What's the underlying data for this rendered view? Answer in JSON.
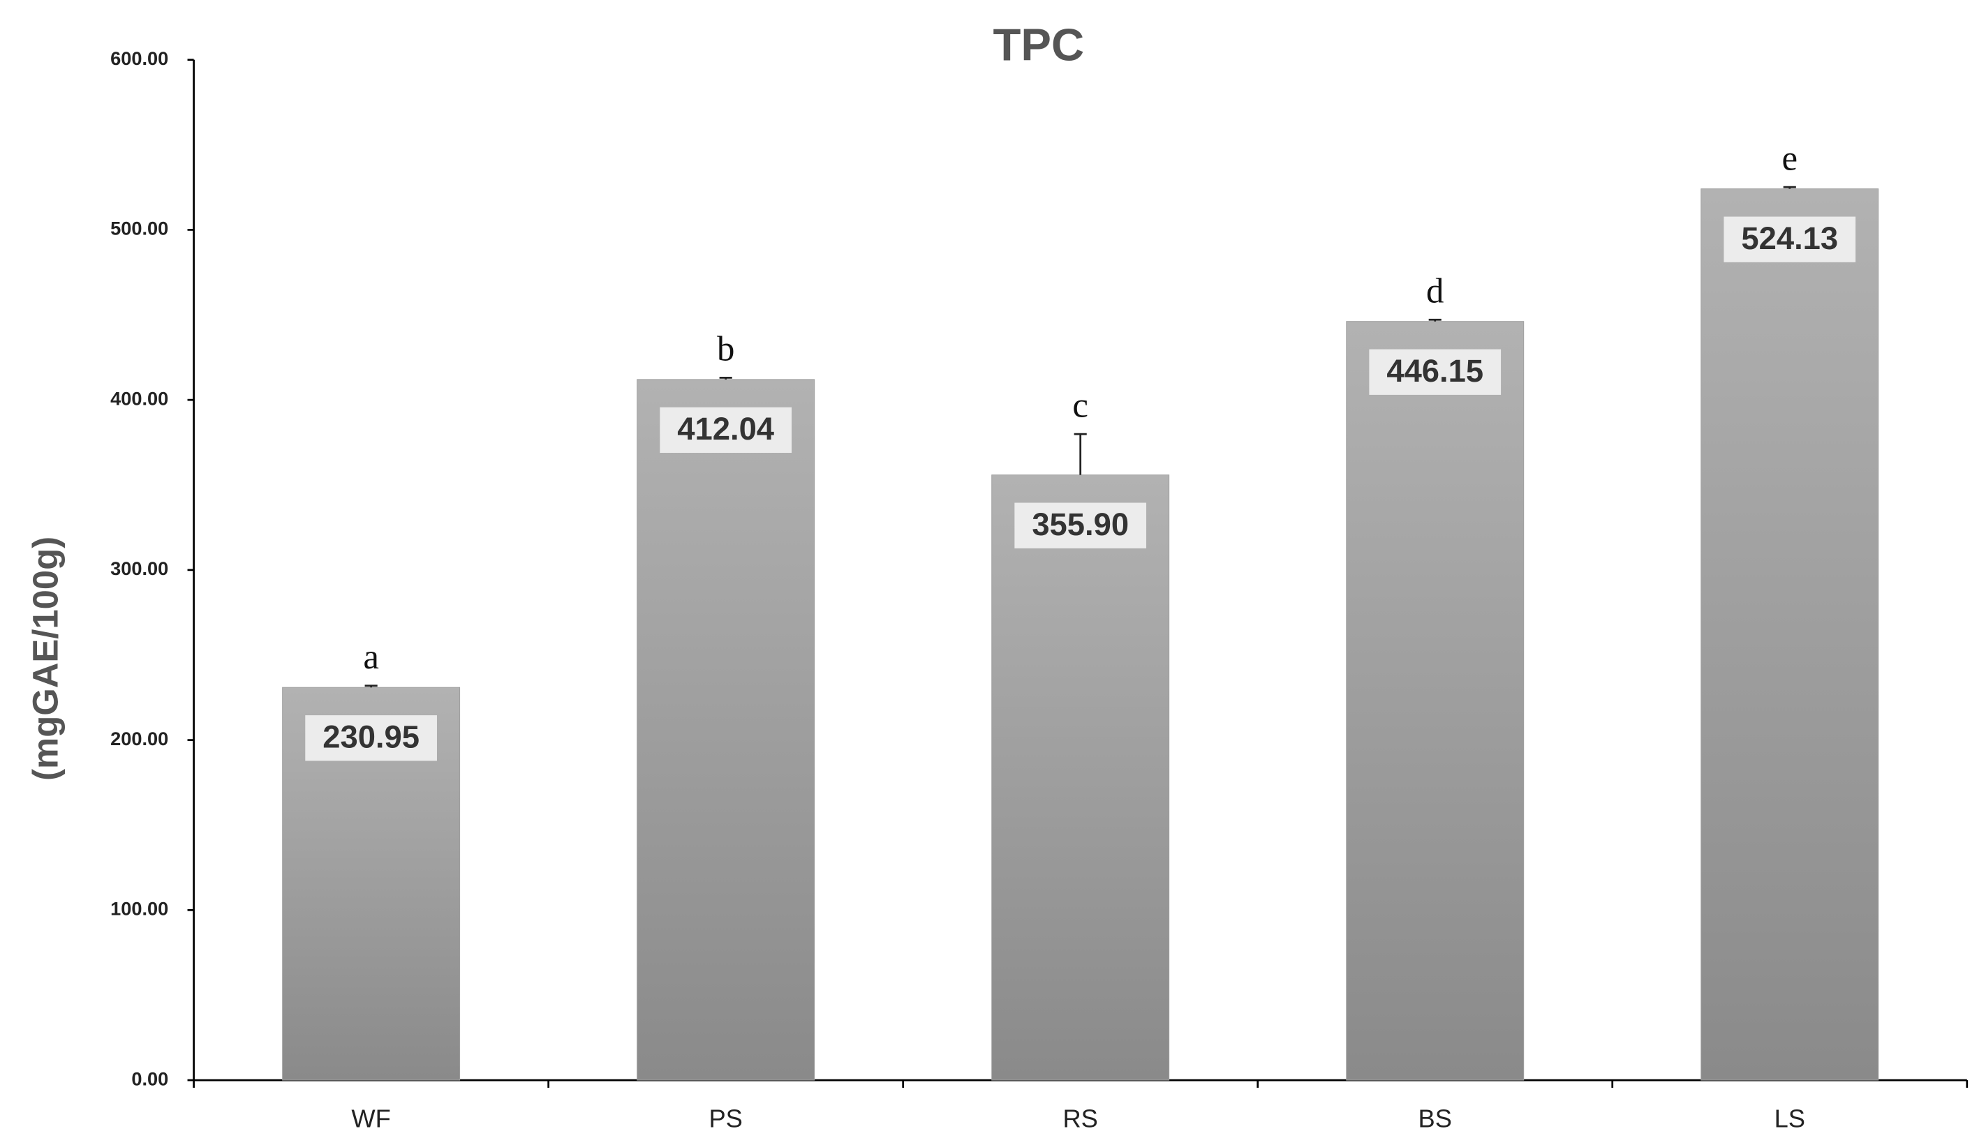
{
  "chart_data": {
    "type": "bar",
    "title": "TPC",
    "y_label": "(mgGAE/100g)",
    "categories": [
      "WF",
      "PS",
      "RS",
      "BS",
      "LS"
    ],
    "values": [
      230.95,
      412.04,
      355.9,
      446.15,
      524.13
    ],
    "value_labels": [
      "230.95",
      "412.04",
      "355.90",
      "446.15",
      "524.13"
    ],
    "errors": [
      1,
      1,
      24,
      1,
      1
    ],
    "annotations": [
      "a",
      "b",
      "c",
      "d",
      "e"
    ],
    "color": "#9e9e9e",
    "ylim": [
      0,
      600
    ],
    "yticks": [
      {
        "value": 0,
        "label": "0.00"
      },
      {
        "value": 100,
        "label": "100.00"
      },
      {
        "value": 200,
        "label": "200.00"
      },
      {
        "value": 300,
        "label": "300.00"
      },
      {
        "value": 400,
        "label": "400.00"
      },
      {
        "value": 500,
        "label": "500.00"
      },
      {
        "value": 600,
        "label": "600.00"
      }
    ],
    "grid": false
  }
}
